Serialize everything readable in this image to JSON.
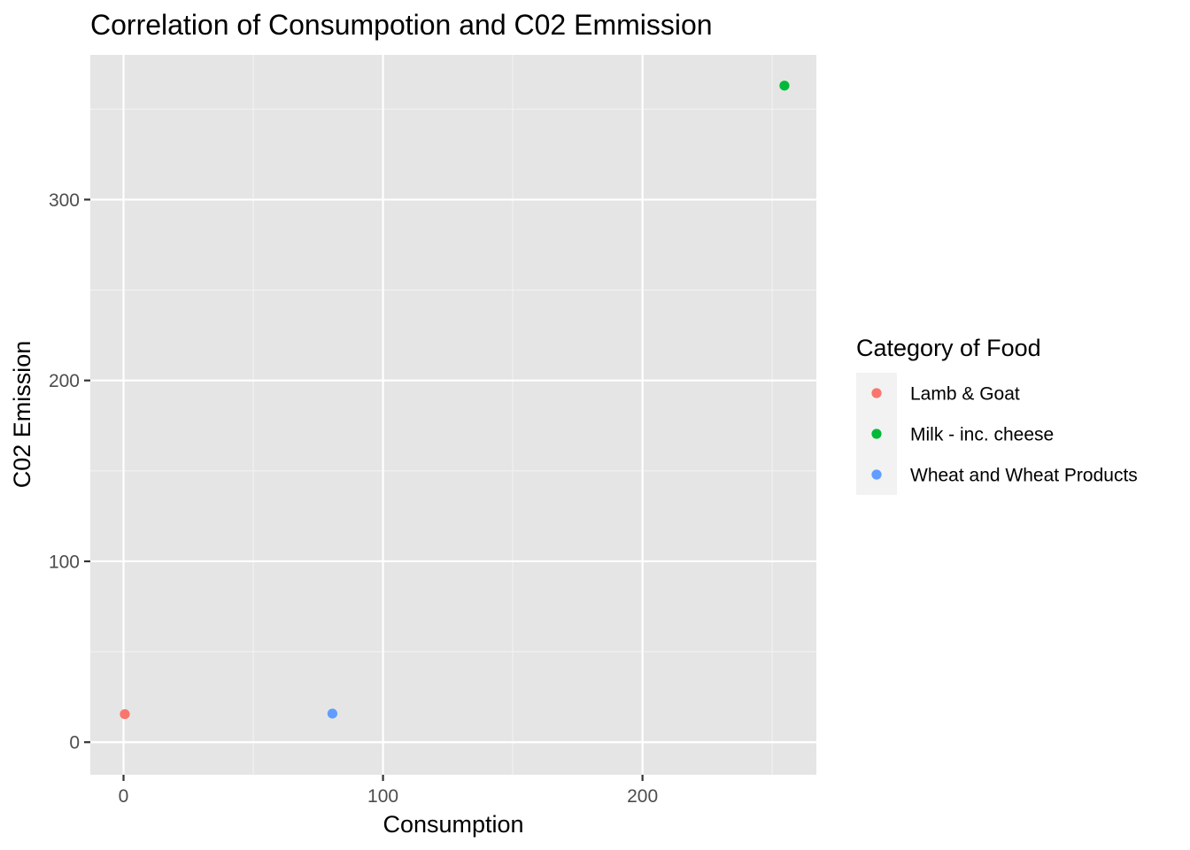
{
  "chart_data": {
    "type": "scatter",
    "title": "Correlation of Consumpotion and C02 Emmission",
    "xlabel": "Consumption",
    "ylabel": "C02 Emission",
    "xlim": [
      -12.8,
      267
    ],
    "ylim": [
      -18,
      380
    ],
    "x_ticks": [
      0,
      100,
      200
    ],
    "y_ticks": [
      0,
      100,
      200,
      300
    ],
    "grid": true,
    "legend": {
      "title": "Category of Food",
      "position": "right"
    },
    "series": [
      {
        "name": "Lamb & Goat",
        "color": "#F8766D",
        "points": [
          {
            "x": 0.5,
            "y": 15.5
          }
        ]
      },
      {
        "name": "Milk - inc. cheese",
        "color": "#00BA38",
        "points": [
          {
            "x": 254.7,
            "y": 363
          }
        ]
      },
      {
        "name": "Wheat and Wheat Products",
        "color": "#619CFF",
        "points": [
          {
            "x": 80.5,
            "y": 15.8
          }
        ]
      }
    ]
  }
}
